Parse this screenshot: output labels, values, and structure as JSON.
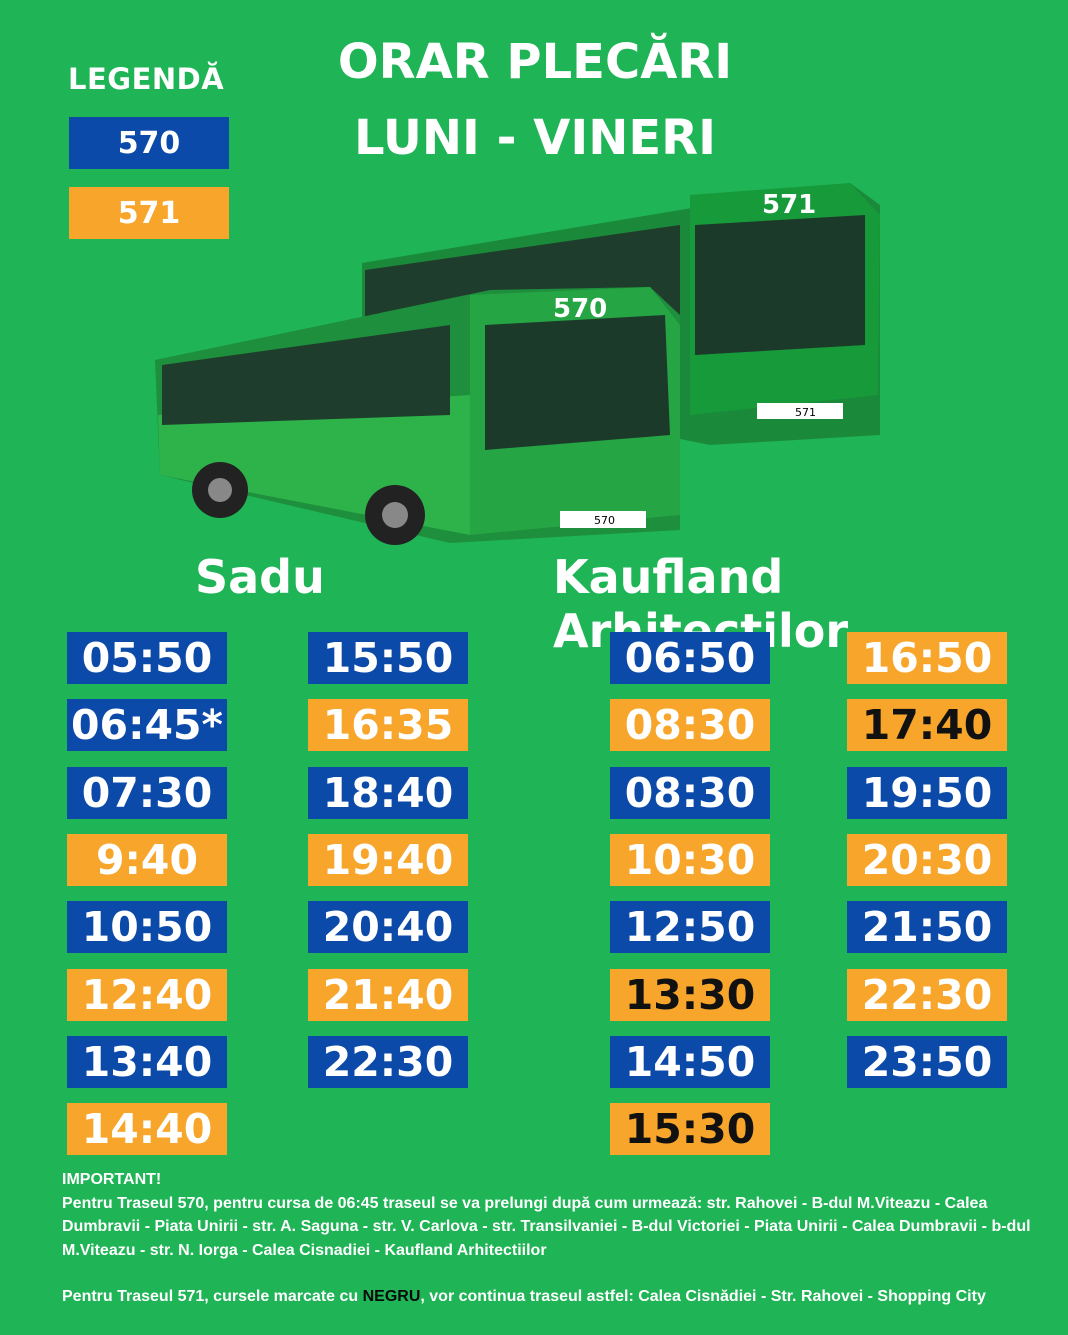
{
  "legend": {
    "title": "LEGENDĂ",
    "items": [
      {
        "label": "570",
        "color": "#0b4aa8"
      },
      {
        "label": "571",
        "color": "#f8a62b"
      }
    ]
  },
  "header": {
    "line1": "ORAR PLECĂRI",
    "line2": "LUNI - VINERI"
  },
  "illustration": {
    "bus_front_label": "570",
    "bus_back_label": "571",
    "plate_front": "570",
    "plate_back": "571"
  },
  "colors": {
    "background": "#1fb456",
    "route_570": "#0b4aa8",
    "route_571": "#f8a62b",
    "marked_text": "#111111"
  },
  "stations": [
    {
      "name": "Sadu",
      "columns": [
        [
          {
            "time": "05:50",
            "route": "570"
          },
          {
            "time": "06:45*",
            "route": "570"
          },
          {
            "time": "07:30",
            "route": "570"
          },
          {
            "time": "9:40",
            "route": "571"
          },
          {
            "time": "10:50",
            "route": "570"
          },
          {
            "time": "12:40",
            "route": "571"
          },
          {
            "time": "13:40",
            "route": "570"
          },
          {
            "time": "14:40",
            "route": "571"
          }
        ],
        [
          {
            "time": "15:50",
            "route": "570"
          },
          {
            "time": "16:35",
            "route": "571"
          },
          {
            "time": "18:40",
            "route": "570"
          },
          {
            "time": "19:40",
            "route": "571"
          },
          {
            "time": "20:40",
            "route": "570"
          },
          {
            "time": "21:40",
            "route": "571"
          },
          {
            "time": "22:30",
            "route": "570"
          }
        ]
      ]
    },
    {
      "name": "Kaufland Arhitecților",
      "columns": [
        [
          {
            "time": "06:50",
            "route": "570"
          },
          {
            "time": "08:30",
            "route": "571"
          },
          {
            "time": "08:30",
            "route": "570"
          },
          {
            "time": "10:30",
            "route": "571"
          },
          {
            "time": "12:50",
            "route": "570"
          },
          {
            "time": "13:30",
            "route": "571",
            "marked_black": true
          },
          {
            "time": "14:50",
            "route": "570"
          },
          {
            "time": "15:30",
            "route": "571",
            "marked_black": true
          }
        ],
        [
          {
            "time": "16:50",
            "route": "571"
          },
          {
            "time": "17:40",
            "route": "571",
            "marked_black": true
          },
          {
            "time": "19:50",
            "route": "570"
          },
          {
            "time": "20:30",
            "route": "571"
          },
          {
            "time": "21:50",
            "route": "570"
          },
          {
            "time": "22:30",
            "route": "571"
          },
          {
            "time": "23:50",
            "route": "570"
          }
        ]
      ]
    }
  ],
  "notes": {
    "heading": "IMPORTANT!",
    "note1": "Pentru Traseul 570, pentru cursa de 06:45 traseul se va prelungi după cum urmează: str. Rahovei - B-dul M.Viteazu - Calea Dumbravii - Piata Unirii - str. A. Saguna - str. V. Carlova - str. Transilvaniei - B-dul Victoriei - Piata Unirii - Calea Dumbravii - b-dul M.Viteazu - str. N. Iorga - Calea Cisnadiei - Kaufland Arhitectiilor",
    "note2_before": "Pentru Traseul 571, cursele marcate cu ",
    "note2_highlight": "NEGRU",
    "note2_after": ", vor continua traseul astfel: Calea  Cisnădiei - Str. Rahovei - Shopping City"
  }
}
